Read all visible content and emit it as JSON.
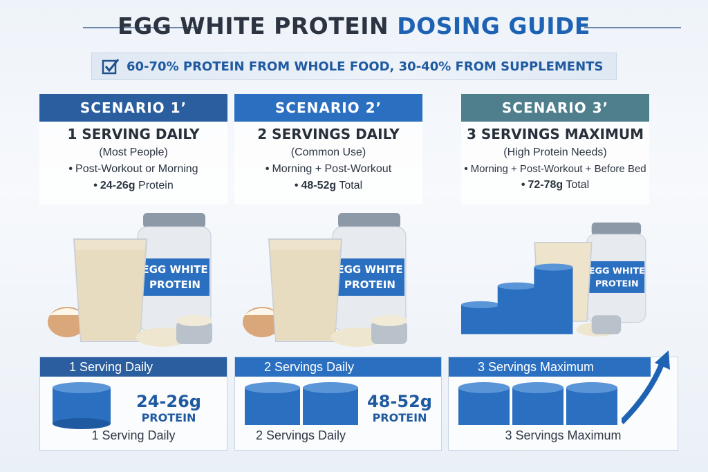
{
  "title": {
    "part1": "EGG WHITE PROTEIN",
    "part2": "DOSING GUIDE"
  },
  "banner": {
    "text": "60-70% PROTEIN FROM WHOLE FOOD, 30-40% FROM SUPPLEMENTS"
  },
  "scenarios": [
    {
      "header": "SCENARIO 1’",
      "heading": "1 SERVING DAILY",
      "sub": "(Most People)",
      "bullet1": "Post-Workout or Morning",
      "bullet2_bold": "24-26g",
      "bullet2_rest": " Protein",
      "label_line1": "EGG WHITE",
      "label_line2": "PROTEIN"
    },
    {
      "header": "SCENARIO 2’",
      "heading": "2 SERVINGS DAILY",
      "sub": "(Common Use)",
      "bullet1": "Morning + Post-Workout",
      "bullet2_bold": "48-52g",
      "bullet2_rest": " Total",
      "label_line1": "EGG WHITE",
      "label_line2": "PROTEIN"
    },
    {
      "header": "SCENARIO 3’",
      "heading": "3 SERVINGS MAXIMUM",
      "sub": "(High Protein Needs)",
      "bullet1": "Morning + Post-Workout + Before Bed",
      "bullet2_bold": "72-78g",
      "bullet2_rest": " Total",
      "label_line1": "EGG WHITE",
      "label_line2": "PROTEIN"
    }
  ],
  "bottom": [
    {
      "header": "1 Serving Daily",
      "value": "24-26g",
      "unit": "PROTEIN",
      "caption": "1 Serving Daily"
    },
    {
      "header": "2 Servings Daily",
      "value": "48-52g",
      "unit": "PROTEIN",
      "caption": "2 Servings Daily"
    },
    {
      "header": "3 Servings Maximum",
      "caption": "3 Servings Maximum"
    }
  ],
  "colors": {
    "header1": "#2a5e9e",
    "header2": "#2b6fc0",
    "header3": "#4f7e8c",
    "accent": "#1e62b3"
  },
  "icons": [
    "checkbox-icon",
    "arrow-up-icon"
  ]
}
